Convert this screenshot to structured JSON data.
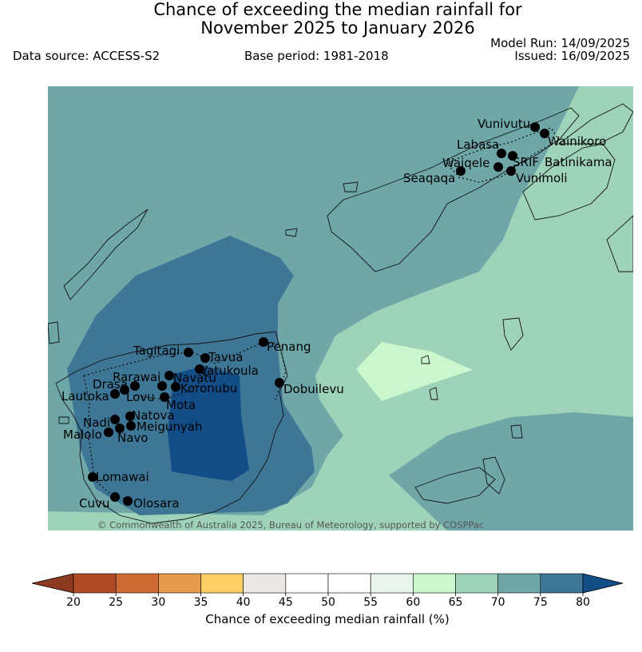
{
  "title_line1": "Chance of exceeding the median rainfall for",
  "title_line2": "November 2025 to January 2026",
  "data_source": "Data source: ACCESS-S2",
  "base_period": "Base period: 1981-2018",
  "model_run": "Model Run: 14/09/2025",
  "issued": "Issued: 16/09/2025",
  "credit": "© Commonwealth of Australia 2025, Bureau of Meteorology, supported by COSPPac",
  "colorbar": {
    "label": "Chance of exceeding median rainfall (%)",
    "ticks": [
      "20",
      "25",
      "30",
      "35",
      "40",
      "45",
      "50",
      "55",
      "60",
      "65",
      "70",
      "75",
      "80"
    ],
    "colors": {
      "below20": "#8c3a22",
      "20-25": "#b24a26",
      "25-30": "#d06a35",
      "30-35": "#e49b4e",
      "35-40": "#fdd066",
      "40-45": "#ece8e4",
      "45-50": "#ffffff",
      "50-55": "#ffffff",
      "55-60": "#e9f5ea",
      "60-65": "#cbf7cc",
      "65-70": "#9ed3ba",
      "70-75": "#6fa7a8",
      "75-80": "#3e7696",
      "above80": "#124d88"
    }
  },
  "stations": [
    {
      "name": "Vunivutu"
    },
    {
      "name": "Wainikoro"
    },
    {
      "name": "Labasa"
    },
    {
      "name": "SRIF"
    },
    {
      "name": "Batinikama"
    },
    {
      "name": "Waiqele"
    },
    {
      "name": "Seaqaqa"
    },
    {
      "name": "Vunimoli"
    },
    {
      "name": "Penang"
    },
    {
      "name": "Dobuilevu"
    },
    {
      "name": "Tagitagi"
    },
    {
      "name": "Tavua"
    },
    {
      "name": "Vatukoula"
    },
    {
      "name": "Rarawai"
    },
    {
      "name": "Navatu"
    },
    {
      "name": "Drasa"
    },
    {
      "name": "Koronubu"
    },
    {
      "name": "Lautoka"
    },
    {
      "name": "Lovu"
    },
    {
      "name": "Mota"
    },
    {
      "name": "Natova"
    },
    {
      "name": "Nadi"
    },
    {
      "name": "Meigunyah"
    },
    {
      "name": "Malolo"
    },
    {
      "name": "Navo"
    },
    {
      "name": "Lomawai"
    },
    {
      "name": "Cuvu"
    },
    {
      "name": "Olosara"
    }
  ]
}
